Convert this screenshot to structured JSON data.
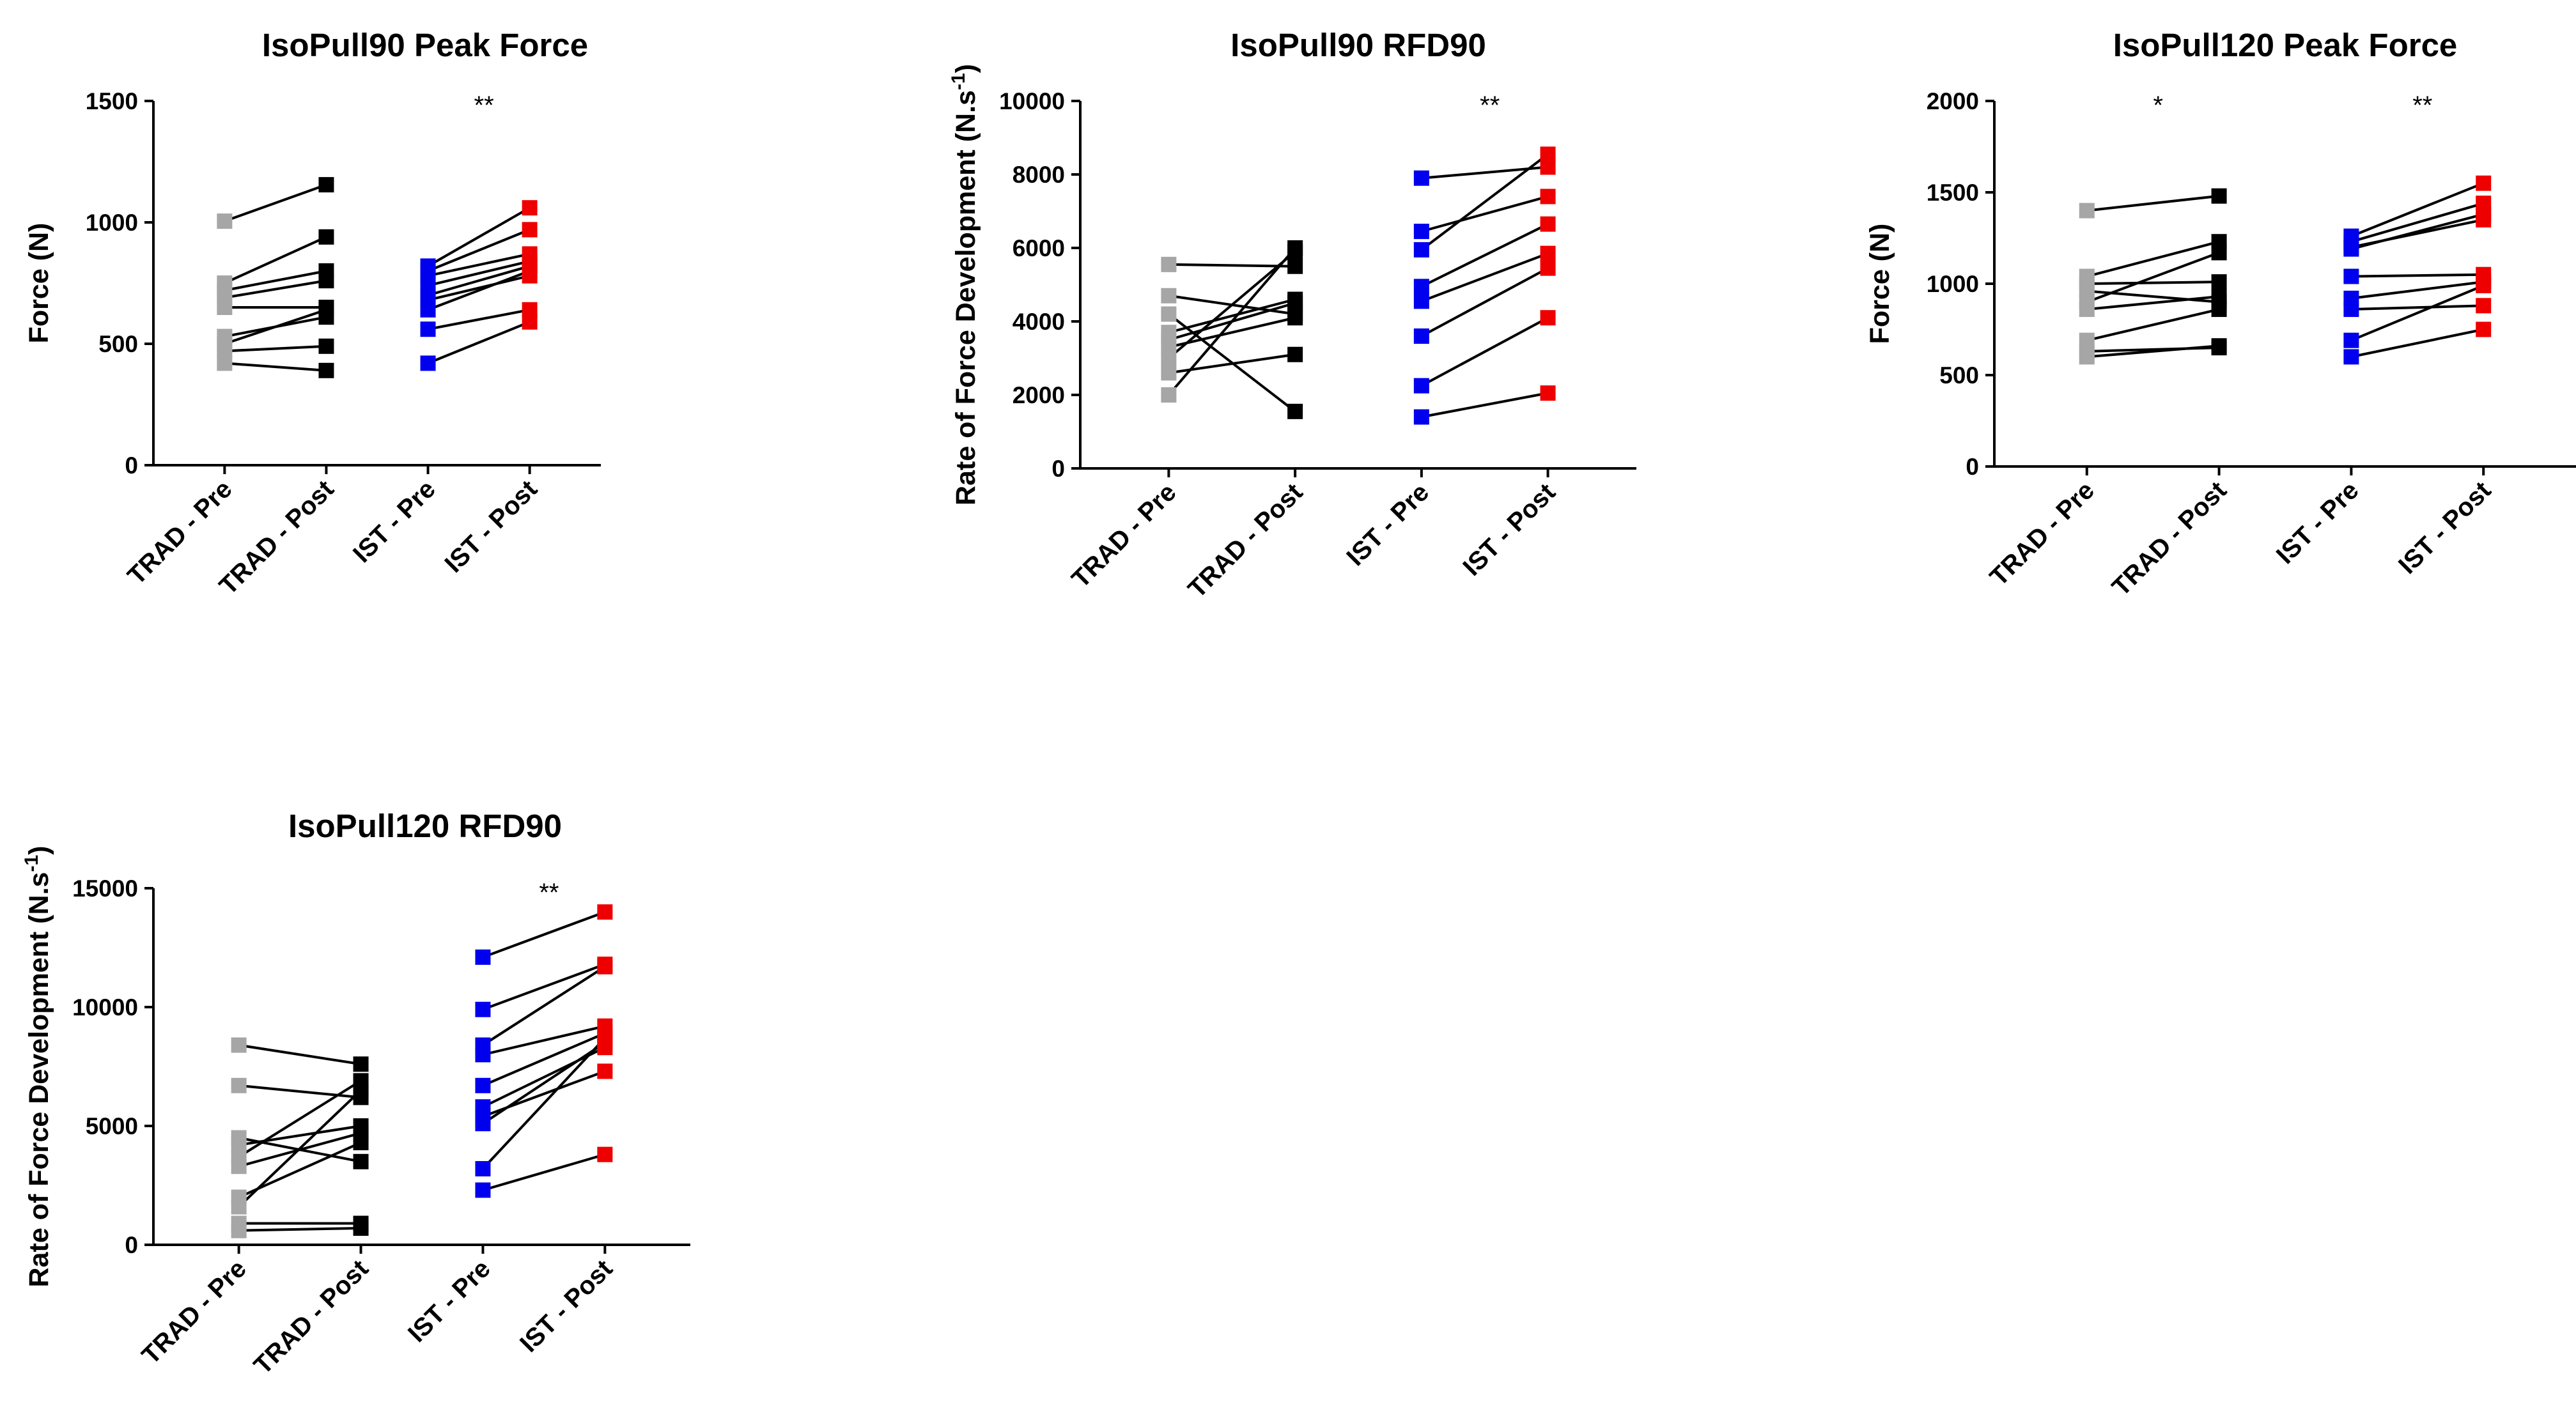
{
  "chart_data": [
    {
      "type": "scatter",
      "style": "before-after",
      "title": "IsoPull90 Peak Force",
      "ylabel": "Force (N)",
      "ylabel_super": "",
      "categories": [
        "TRAD - Pre",
        "TRAD - Post",
        "IST - Pre",
        "IST - Post"
      ],
      "ylim": [
        0,
        1500
      ],
      "yticks": [
        0,
        500,
        1000,
        1500
      ],
      "colors": [
        "#a6a6a6",
        "#000000",
        "#0000ee",
        "#ee0000"
      ],
      "annotations": [
        {
          "category": 3,
          "text": "**"
        }
      ],
      "groups": [
        {
          "name": "TRAD",
          "pre": [
            1005,
            750,
            720,
            690,
            650,
            530,
            500,
            470,
            420
          ],
          "post": [
            1155,
            940,
            800,
            760,
            650,
            610,
            640,
            490,
            390
          ]
        },
        {
          "name": "IST",
          "pre": [
            820,
            800,
            780,
            740,
            700,
            680,
            640,
            560,
            420
          ],
          "post": [
            1060,
            970,
            870,
            840,
            820,
            780,
            800,
            640,
            590
          ]
        }
      ]
    },
    {
      "type": "scatter",
      "style": "before-after",
      "title": "IsoPull90 RFD90",
      "ylabel": "Rate of Force Development (N.s",
      "ylabel_super": "-1",
      "ylabel_suffix": ")",
      "categories": [
        "TRAD - Pre",
        "TRAD - Post",
        "IST - Pre",
        "IST - Post"
      ],
      "ylim": [
        0,
        10000
      ],
      "yticks": [
        0,
        2000,
        4000,
        6000,
        8000,
        10000
      ],
      "colors": [
        "#a6a6a6",
        "#000000",
        "#0000ee",
        "#ee0000"
      ],
      "annotations": [
        {
          "category": 3,
          "text": "**"
        }
      ],
      "groups": [
        {
          "name": "TRAD",
          "pre": [
            5550,
            4700,
            4200,
            3700,
            3300,
            3000,
            2600,
            3500,
            2000
          ],
          "post": [
            5500,
            4200,
            1550,
            4600,
            4100,
            5900,
            3100,
            4500,
            6000
          ]
        },
        {
          "name": "IST",
          "pre": [
            7900,
            6450,
            5950,
            4950,
            4550,
            3600,
            2250,
            1400
          ],
          "post": [
            8200,
            7400,
            8550,
            6650,
            5850,
            5450,
            4100,
            2050
          ]
        }
      ]
    },
    {
      "type": "scatter",
      "style": "before-after",
      "title": "IsoPull120 Peak Force",
      "ylabel": "Force (N)",
      "ylabel_super": "",
      "categories": [
        "TRAD - Pre",
        "TRAD - Post",
        "IST - Pre",
        "IST - Post"
      ],
      "ylim": [
        0,
        2000
      ],
      "yticks": [
        0,
        500,
        1000,
        1500,
        2000
      ],
      "colors": [
        "#a6a6a6",
        "#000000",
        "#0000ee",
        "#ee0000"
      ],
      "annotations": [
        {
          "category": 1,
          "text": "*"
        },
        {
          "category": 3,
          "text": "**"
        }
      ],
      "groups": [
        {
          "name": "TRAD",
          "pre": [
            1400,
            1040,
            1000,
            960,
            900,
            860,
            690,
            630,
            600
          ],
          "post": [
            1480,
            1230,
            1010,
            900,
            1170,
            930,
            860,
            650,
            660
          ]
        },
        {
          "name": "IST",
          "pre": [
            1260,
            1230,
            1200,
            1190,
            1040,
            920,
            860,
            690,
            600
          ],
          "post": [
            1550,
            1440,
            1350,
            1380,
            1050,
            1010,
            880,
            990,
            750
          ]
        }
      ]
    },
    {
      "type": "scatter",
      "style": "before-after",
      "title": "IsoPull120 RFD90",
      "ylabel": "Rate of Force Development (N.s",
      "ylabel_super": "-1",
      "ylabel_suffix": ")",
      "categories": [
        "TRAD - Pre",
        "TRAD - Post",
        "IST - Pre",
        "IST - Post"
      ],
      "ylim": [
        0,
        15000
      ],
      "yticks": [
        0,
        5000,
        10000,
        15000
      ],
      "colors": [
        "#a6a6a6",
        "#000000",
        "#0000ee",
        "#ee0000"
      ],
      "annotations": [
        {
          "category": 3,
          "text": "**"
        }
      ],
      "groups": [
        {
          "name": "TRAD",
          "pre": [
            8400,
            6700,
            4500,
            4200,
            3700,
            3300,
            2000,
            1600,
            900,
            600
          ],
          "post": [
            7600,
            6200,
            3500,
            5000,
            6900,
            4700,
            4300,
            6500,
            900,
            700
          ]
        },
        {
          "name": "IST",
          "pre": [
            12100,
            9900,
            8400,
            8000,
            6700,
            5800,
            5400,
            5100,
            3200,
            2300
          ],
          "post": [
            14000,
            11800,
            11700,
            9200,
            8900,
            8300,
            7300,
            8500,
            8700,
            3800
          ]
        }
      ]
    }
  ]
}
